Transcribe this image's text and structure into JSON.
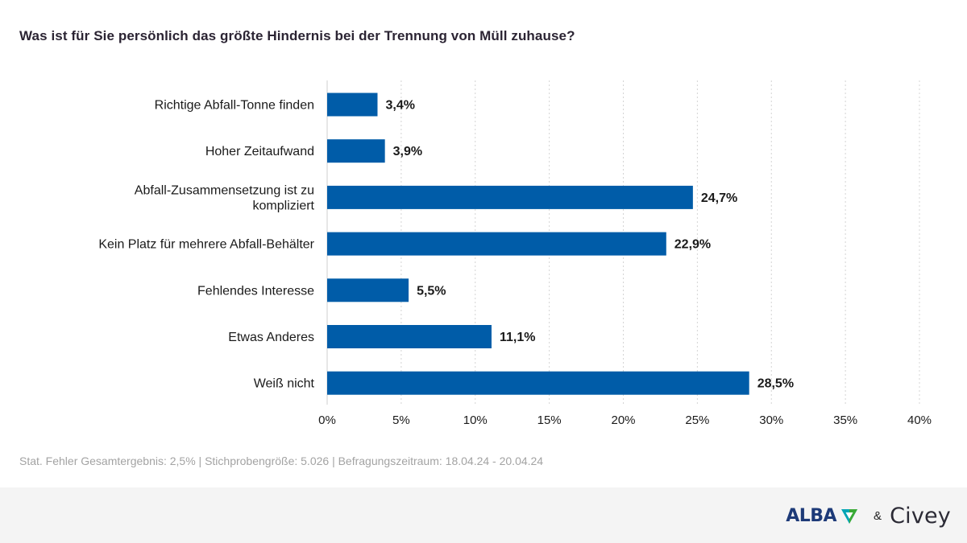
{
  "chart_data": {
    "type": "bar",
    "orientation": "horizontal",
    "title": "Was ist für Sie persönlich das größte Hindernis bei der Trennung von Müll zuhause?",
    "categories": [
      [
        "Richtige Abfall-Tonne finden"
      ],
      [
        "Hoher Zeitaufwand"
      ],
      [
        "Abfall-Zusammensetzung ist zu",
        "kompliziert"
      ],
      [
        "Kein Platz für mehrere Abfall-Behälter"
      ],
      [
        "Fehlendes Interesse"
      ],
      [
        "Etwas Anderes"
      ],
      [
        "Weiß nicht"
      ]
    ],
    "values": [
      3.4,
      3.9,
      24.7,
      22.9,
      5.5,
      11.1,
      28.5
    ],
    "value_labels": [
      "3,4%",
      "3,9%",
      "24,7%",
      "22,9%",
      "5,5%",
      "11,1%",
      "28,5%"
    ],
    "xlim": [
      0,
      40
    ],
    "xticks": [
      0,
      5,
      10,
      15,
      20,
      25,
      30,
      35,
      40
    ],
    "xtick_labels": [
      "0%",
      "5%",
      "10%",
      "15%",
      "20%",
      "25%",
      "30%",
      "35%",
      "40%"
    ],
    "grid": true,
    "bar_color": "#005ca8"
  },
  "footnote": "Stat. Fehler Gesamtergebnis: 2,5% | Stichprobengröße: 5.026 | Befragungszeitraum: 18.04.24 - 20.04.24",
  "brand": {
    "alba": "ALBA",
    "amp": "&",
    "civey": "Civey",
    "alba_color": "#1d3a78",
    "alba_icon_colors": [
      "#00a5b5",
      "#3aaa35"
    ]
  }
}
